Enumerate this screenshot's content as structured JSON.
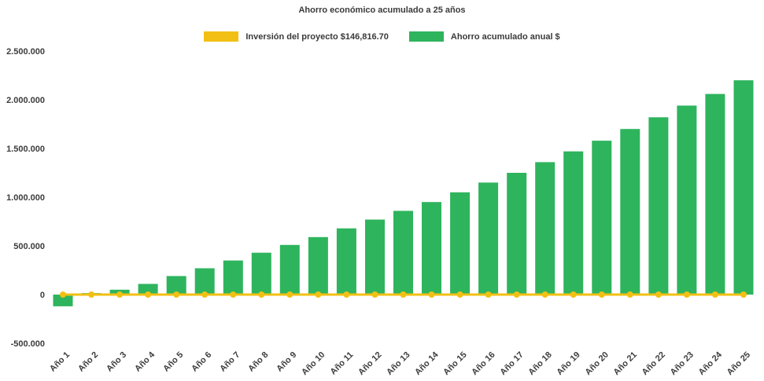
{
  "chart_data": {
    "type": "bar",
    "title": "Ahorro económico acumulado a 25 años",
    "categories": [
      "Año 1",
      "Año 2",
      "Año 3",
      "Año 4",
      "Año 5",
      "Año 6",
      "Año 7",
      "Año 8",
      "Año 9",
      "Año 10",
      "Año 11",
      "Año 12",
      "Año 13",
      "Año 14",
      "Año 15",
      "Año 16",
      "Año 17",
      "Año 18",
      "Año 19",
      "Año 20",
      "Año 21",
      "Año 22",
      "Año 23",
      "Año 24",
      "Año 25"
    ],
    "series": [
      {
        "name": "Inversión del proyecto $146,816.70",
        "type": "line",
        "color": "#F2C014",
        "values": [
          0,
          0,
          0,
          0,
          0,
          0,
          0,
          0,
          0,
          0,
          0,
          0,
          0,
          0,
          0,
          0,
          0,
          0,
          0,
          0,
          0,
          0,
          0,
          0,
          0
        ]
      },
      {
        "name": "Ahorro acumulado anual $",
        "type": "bar",
        "color": "#2EB45D",
        "values": [
          -120000,
          15000,
          50000,
          110000,
          190000,
          270000,
          350000,
          430000,
          510000,
          590000,
          680000,
          770000,
          860000,
          950000,
          1050000,
          1150000,
          1250000,
          1360000,
          1470000,
          1580000,
          1700000,
          1820000,
          1940000,
          2060000,
          2200000
        ]
      }
    ],
    "xlabel": "",
    "ylabel": "",
    "ylim": [
      -500000,
      2500000
    ],
    "grid": false,
    "legend_position": "top",
    "yticks": [
      {
        "value": 2500000,
        "label": "2.500.000"
      },
      {
        "value": 2000000,
        "label": "2.000.000"
      },
      {
        "value": 1500000,
        "label": "1.500.000"
      },
      {
        "value": 1000000,
        "label": "1.000.000"
      },
      {
        "value": 500000,
        "label": "500.000"
      },
      {
        "value": 0,
        "label": "0"
      },
      {
        "value": -500000,
        "label": "-500.000"
      }
    ]
  }
}
